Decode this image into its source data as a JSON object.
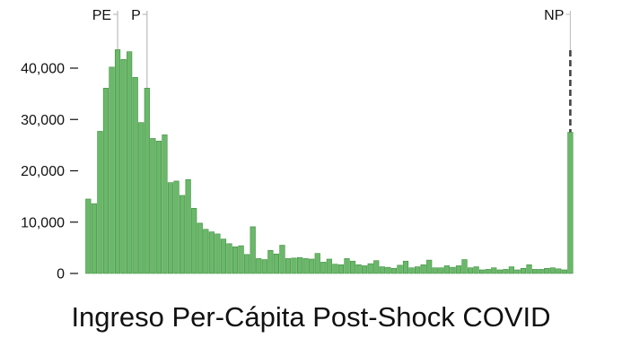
{
  "chart_data": {
    "type": "bar",
    "title": "",
    "xlabel": "Ingreso Per-Cápita Post-Shock COVID",
    "ylabel": "",
    "ylim": [
      0,
      45500
    ],
    "yticks": [
      0,
      10000,
      20000,
      30000,
      40000
    ],
    "ytick_labels": [
      "0",
      "10,000",
      "20,000",
      "30,000",
      "40,000"
    ],
    "grid": false,
    "bar_color": "#6ab86a",
    "bar_edge_color": "#3f8f3f",
    "values": [
      14500,
      13600,
      27700,
      36100,
      40200,
      43600,
      41700,
      43200,
      38200,
      29400,
      36100,
      26300,
      25800,
      27000,
      17700,
      18000,
      15200,
      18300,
      12700,
      9800,
      8600,
      8100,
      7700,
      6700,
      5800,
      5200,
      5400,
      3700,
      9100,
      2900,
      2700,
      4500,
      3800,
      5500,
      2900,
      3000,
      3100,
      2900,
      2800,
      3900,
      2200,
      2800,
      1800,
      1700,
      2900,
      2400,
      1700,
      1500,
      1900,
      2500,
      1300,
      1200,
      1000,
      1600,
      2400,
      1100,
      1300,
      1700,
      2600,
      1100,
      1100,
      1500,
      1200,
      1500,
      2700,
      1100,
      1300,
      700,
      800,
      1100,
      700,
      800,
      1300,
      700,
      1000,
      1700,
      800,
      800,
      1000,
      1100,
      900,
      700,
      27500
    ],
    "markers": [
      {
        "label": "PE",
        "bar_index": 5,
        "style": "solid"
      },
      {
        "label": "P",
        "bar_index": 10,
        "style": "solid"
      },
      {
        "label": "NP",
        "bar_index": 82,
        "style": "dashed"
      }
    ]
  }
}
